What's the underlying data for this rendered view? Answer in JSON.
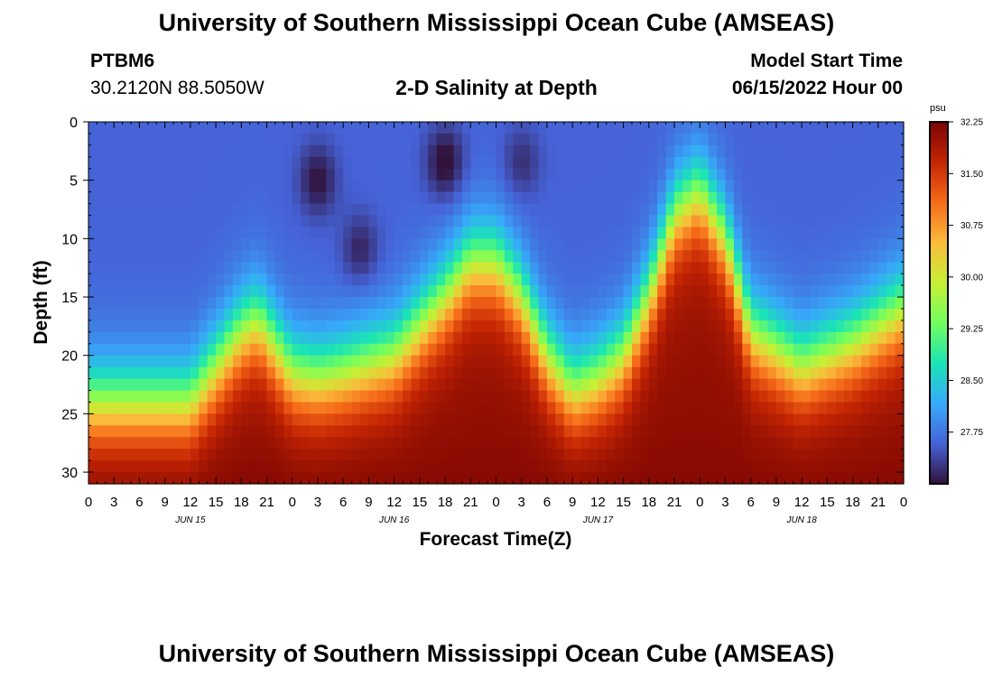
{
  "header": {
    "title": "University of Southern Mississippi Ocean Cube (AMSEAS)",
    "station": "PTBM6",
    "coordinates": "30.2120N  88.5050W",
    "subtitle": "2-D Salinity at Depth",
    "model_start_label": "Model Start Time",
    "model_start_value": "06/15/2022 Hour 00"
  },
  "footer": {
    "title": "University of Southern Mississippi Ocean Cube (AMSEAS)"
  },
  "colorbar": {
    "unit": "psu",
    "min": 27.0,
    "max": 32.25,
    "ticks": [
      "32.25",
      "31.50",
      "30.75",
      "30.00",
      "29.25",
      "28.50",
      "27.75"
    ],
    "colormap": [
      "#30123b",
      "#4662d7",
      "#36aaf9",
      "#1ae4b6",
      "#72fe5e",
      "#c7ef34",
      "#fabb3b",
      "#f66b19",
      "#c42503",
      "#7a0403"
    ]
  },
  "chart_data": {
    "type": "heatmap",
    "title": "2-D Salinity at Depth",
    "xlabel": "Forecast Time(Z)",
    "ylabel": "Depth (ft)",
    "x_unit": "hours since 06/15/2022 00Z",
    "x_range": [
      0,
      96
    ],
    "y_range": [
      0,
      31
    ],
    "y_inverted": true,
    "x_ticks": [
      "0",
      "3",
      "6",
      "9",
      "12",
      "15",
      "18",
      "21",
      "0",
      "3",
      "6",
      "9",
      "12",
      "15",
      "18",
      "21",
      "0",
      "3",
      "6",
      "9",
      "12",
      "15",
      "18",
      "21",
      "0",
      "3",
      "6",
      "9",
      "12",
      "15",
      "18",
      "21",
      "0"
    ],
    "y_ticks": [
      "0",
      "5",
      "10",
      "15",
      "20",
      "25",
      "30"
    ],
    "date_labels": [
      "JUN 15",
      "JUN 16",
      "JUN 17",
      "JUN 18"
    ],
    "value_unit": "psu",
    "color_range": [
      27.0,
      32.25
    ],
    "halocline_depth_ft": {
      "hours": [
        0,
        6,
        12,
        18,
        20,
        24,
        27,
        30,
        36,
        42,
        45,
        48,
        51,
        54,
        57,
        60,
        63,
        66,
        69,
        72,
        75,
        78,
        84,
        90,
        96
      ],
      "depth": [
        24,
        24,
        24,
        18,
        17,
        21.5,
        22,
        21.5,
        20,
        15,
        12,
        12,
        15,
        20,
        23,
        22,
        20,
        15,
        8,
        6,
        10,
        18,
        21,
        19,
        16
      ]
    },
    "low_salinity_patches": [
      {
        "hour": 27,
        "depth_ft": 5,
        "salinity": 27.0
      },
      {
        "hour": 32,
        "depth_ft": 11,
        "salinity": 27.1
      },
      {
        "hour": 42,
        "depth_ft": 3.5,
        "salinity": 26.9
      },
      {
        "hour": 51,
        "depth_ft": 3.5,
        "salinity": 27.2
      }
    ],
    "surface_salinity": 27.6,
    "bottom_salinity": 31.9
  }
}
